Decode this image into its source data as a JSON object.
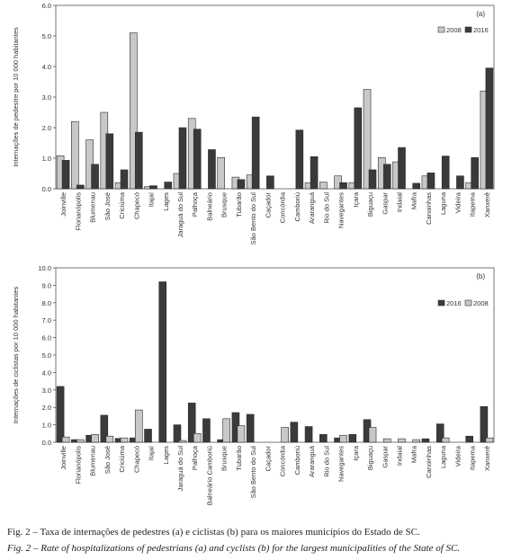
{
  "chart_data": [
    {
      "type": "bar",
      "panel_label": "(a)",
      "ylabel": "Internações de pedestre por 10 000 habitantes",
      "ylim": [
        0,
        6
      ],
      "yticks": [
        "0.0",
        "1.0",
        "2.0",
        "3.0",
        "4.0",
        "5.0",
        "6.0"
      ],
      "legend_position": "top-right",
      "categories": [
        "Joinville",
        "Florianópolis",
        "Blumenau",
        "São José",
        "Criciúma",
        "Chapecó",
        "Itajaí",
        "Lages",
        "Jaraguá do Sul",
        "Palhoça",
        "Balneário",
        "Brusque",
        "Tubarão",
        "São Bento do Sul",
        "Caçador",
        "Concórdia",
        "Camboriú",
        "Araranguá",
        "Rio do Sul",
        "Navegantes",
        "Içara",
        "Biguaçu",
        "Gaspar",
        "Indaial",
        "Mafra",
        "Canoinhas",
        "Laguna",
        "Videira",
        "Itapema",
        "Xanxerê"
      ],
      "series": [
        {
          "name": "2008",
          "color": "#c8c8c8",
          "values": [
            1.08,
            2.2,
            1.6,
            2.5,
            0.2,
            5.1,
            0.07,
            0.0,
            0.5,
            2.3,
            0.0,
            1.02,
            0.38,
            0.45,
            0.0,
            0.0,
            0.0,
            0.2,
            0.22,
            0.42,
            0.2,
            3.25,
            1.02,
            0.88,
            0.0,
            0.42,
            0.0,
            0.0,
            0.2,
            3.2
          ]
        },
        {
          "name": "2016",
          "color": "#3a3a3a",
          "values": [
            0.93,
            0.12,
            0.8,
            1.8,
            0.62,
            1.85,
            0.1,
            0.22,
            2.0,
            1.95,
            1.28,
            0.0,
            0.3,
            2.35,
            0.42,
            0.0,
            1.92,
            1.05,
            0.0,
            0.2,
            2.65,
            0.62,
            0.8,
            1.35,
            0.18,
            0.52,
            1.07,
            0.42,
            1.02,
            3.95
          ]
        }
      ]
    },
    {
      "type": "bar",
      "panel_label": "(b)",
      "ylabel": "Internações de ciclistas por 10 000 habitantes",
      "ylim": [
        0,
        10
      ],
      "yticks": [
        "0.0",
        "1.0",
        "2.0",
        "3.0",
        "4.0",
        "5.0",
        "6.0",
        "7.0",
        "8.0",
        "9.0",
        "10.0"
      ],
      "legend_position": "top-right",
      "categories": [
        "Joinville",
        "Florianópolis",
        "Blumenau",
        "São José",
        "Criciúma",
        "Chapecó",
        "Itajaí",
        "Lages",
        "Jaraguá do Sul",
        "Palhoça",
        "Balneário Camboriú",
        "Brusque",
        "Tubarão",
        "São Bento do Sul",
        "Caçador",
        "Concórdia",
        "Camboriú",
        "Araranguá",
        "Rio do Sul",
        "Navegantes",
        "Içara",
        "Biguaçu",
        "Gaspar",
        "Indaial",
        "Mafra",
        "Canoinhas",
        "Laguna",
        "Videira",
        "Itapema",
        "Xanxerê"
      ],
      "series": [
        {
          "name": "2016",
          "color": "#3a3a3a",
          "values": [
            3.2,
            0.15,
            0.4,
            1.55,
            0.22,
            0.25,
            0.75,
            9.2,
            1.0,
            2.25,
            1.35,
            0.15,
            1.7,
            1.6,
            0.0,
            0.0,
            1.15,
            0.9,
            0.45,
            0.25,
            0.45,
            1.3,
            0.0,
            0.0,
            0.0,
            0.2,
            1.05,
            0.0,
            0.35,
            2.05
          ]
        },
        {
          "name": "2008",
          "color": "#c8c8c8",
          "values": [
            0.3,
            0.15,
            0.45,
            0.35,
            0.25,
            1.85,
            0.0,
            0.0,
            0.1,
            0.5,
            0.0,
            1.35,
            0.95,
            0.0,
            0.0,
            0.85,
            0.0,
            0.0,
            0.0,
            0.4,
            0.0,
            0.85,
            0.2,
            0.2,
            0.15,
            0.0,
            0.25,
            0.0,
            0.0,
            0.25
          ]
        }
      ]
    }
  ],
  "caption": {
    "pt": "Fig. 2 – Taxa de internações de pedestres (a) e ciclistas (b) para os maiores municípios do Estado de SC.",
    "en": "Fig. 2 – Rate of hospitalizations of pedestrians (a) and cyclists (b) for the largest municipalities of the State of SC."
  }
}
